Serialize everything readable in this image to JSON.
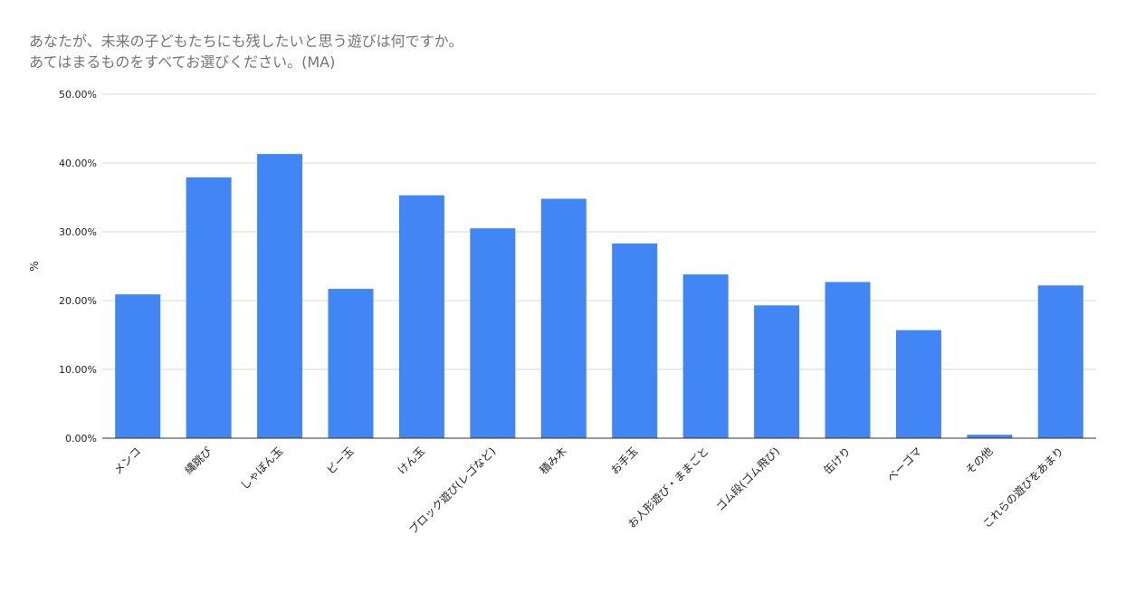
{
  "chart_data": {
    "type": "bar",
    "title": [
      "あなたが、未来の子どもたちにも残したいと思う遊びは何ですか。",
      "あてはまるものをすべてお選びください。(MA)"
    ],
    "xlabel": "",
    "ylabel": "%",
    "ylim": [
      0,
      50
    ],
    "yticks": [
      "0.00%",
      "10.00%",
      "20.00%",
      "30.00%",
      "40.00%",
      "50.00%"
    ],
    "grid": true,
    "legend": "none",
    "bar_color": "#4285f4",
    "categories": [
      "メンコ",
      "縄跳び",
      "しゃぼん玉",
      "ビー玉",
      "けん玉",
      "ブロック遊び(レゴなど)",
      "積み木",
      "お手玉",
      "お人形遊び・ままごと",
      "ゴム段(ゴム飛び)",
      "缶けり",
      "ベーゴマ",
      "その他",
      "これらの遊びをあまり"
    ],
    "values": [
      20.9,
      37.9,
      41.3,
      21.7,
      35.3,
      30.5,
      34.8,
      28.3,
      23.8,
      19.3,
      22.7,
      15.7,
      0.5,
      22.2
    ]
  }
}
